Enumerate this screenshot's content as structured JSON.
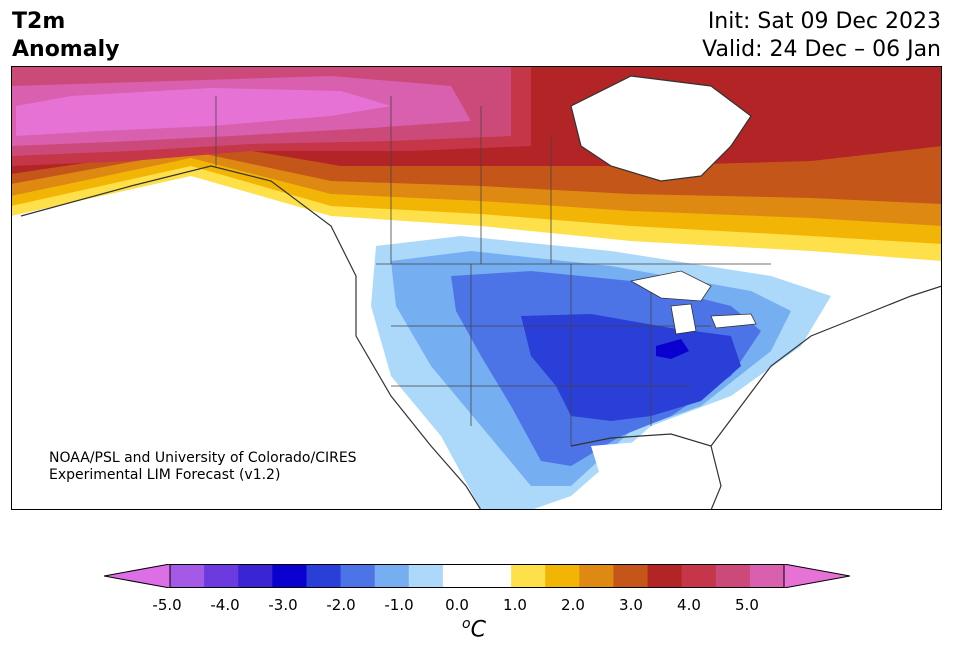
{
  "header": {
    "title_line1": "T2m",
    "title_line2": "Anomaly",
    "init": "Init: Sat 09 Dec 2023",
    "valid": "Valid: 24 Dec – 06 Jan"
  },
  "credit": {
    "line1": "NOAA/PSL and University of Colorado/CIRES",
    "line2": "Experimental LIM Forecast (v1.2)"
  },
  "colorbar": {
    "ticks": [
      "-5.0",
      "-4.0",
      "-3.0",
      "-2.0",
      "-1.0",
      "0.0",
      "1.0",
      "2.0",
      "3.0",
      "4.0",
      "5.0"
    ],
    "colors": [
      "#dc6fe6",
      "#a45ae6",
      "#6c3ade",
      "#3a24d4",
      "#0a00d0",
      "#2a3ed8",
      "#4c74e6",
      "#76aef2",
      "#acd8fa",
      "#ffffff",
      "#ffffff",
      "#fde04a",
      "#f3b505",
      "#de8a12",
      "#c4561a",
      "#b22426",
      "#c43648",
      "#cc4a7a",
      "#d860ae",
      "#e672d6"
    ],
    "unit": "C",
    "unit_prefix": "o"
  },
  "legend_colors": {
    "extreme_warm": "#e672d6",
    "warm": "#b22426",
    "cold": "#2a3ed8",
    "extreme_cold": "#0a00d0"
  }
}
